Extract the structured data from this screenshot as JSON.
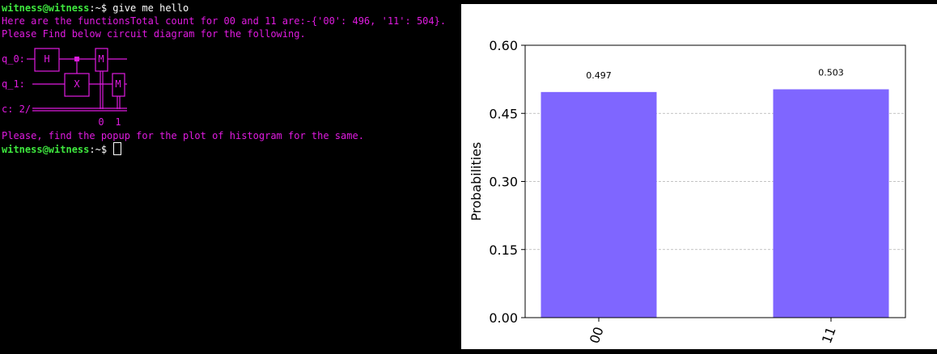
{
  "terminal": {
    "prompt_user": "witness@witness",
    "prompt_sep": ":~$",
    "command": "give me hello",
    "output_line1": "Here are the functionsTotal count for 00 and 11 are:-{'00': 496, '11': 504}.",
    "output_line2": "Please Find below circuit diagram for the following.",
    "circuit": {
      "q0_label": "q_0:",
      "q1_label": "q_1:",
      "c_label": "c: 2/",
      "h_gate": "H",
      "x_gate": "X",
      "m_gate": "M",
      "meas_index_0": "0",
      "meas_index_1": "1"
    },
    "output_line3": "Please, find the popup for the plot of histogram for the same.",
    "colors": {
      "prompt": "#3ee83e",
      "output": "#e01be0",
      "text": "#ffffff"
    }
  },
  "chart_data": {
    "type": "bar",
    "categories": [
      "00",
      "11"
    ],
    "values": [
      0.497,
      0.503
    ],
    "data_labels": [
      "0.497",
      "0.503"
    ],
    "ylabel": "Probabilities",
    "ylim": [
      0,
      0.6
    ],
    "yticks": [
      "0.00",
      "0.15",
      "0.30",
      "0.45",
      "0.60"
    ],
    "grid": "horizontal dashed",
    "bar_color": "#7f66ff"
  }
}
